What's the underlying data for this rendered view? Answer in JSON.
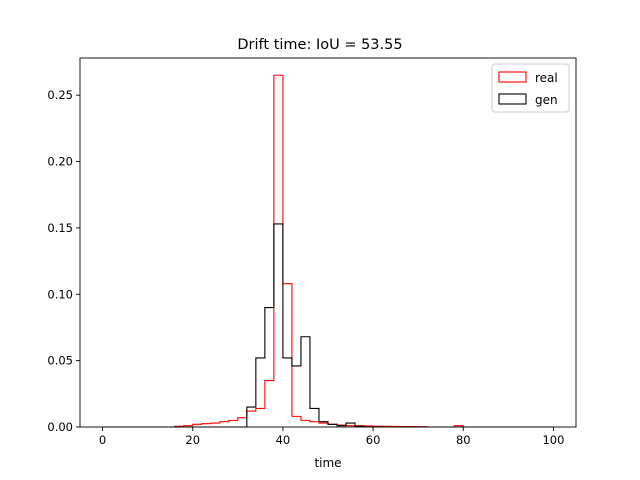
{
  "chart_data": {
    "type": "histogram",
    "title": "Drift time: IoU = 53.55",
    "xlabel": "time",
    "ylabel": "",
    "xlim": [
      -5,
      105
    ],
    "ylim": [
      0,
      0.278
    ],
    "xticks": [
      0,
      20,
      40,
      60,
      80,
      100
    ],
    "xtick_labels": [
      "0",
      "20",
      "40",
      "60",
      "80",
      "100"
    ],
    "yticks": [
      0.0,
      0.05,
      0.1,
      0.15,
      0.2,
      0.25
    ],
    "ytick_labels": [
      "0.00",
      "0.05",
      "0.10",
      "0.15",
      "0.20",
      "0.25"
    ],
    "grid": false,
    "legend_position": "top-right",
    "bin_edges": [
      0,
      2,
      4,
      6,
      8,
      10,
      12,
      14,
      16,
      18,
      20,
      22,
      24,
      26,
      28,
      30,
      32,
      34,
      36,
      38,
      40,
      42,
      44,
      46,
      48,
      50,
      52,
      54,
      56,
      58,
      60,
      62,
      64,
      66,
      68,
      70,
      72,
      74,
      76,
      78,
      80,
      82,
      84,
      86,
      88,
      90,
      92,
      94,
      96,
      98,
      100
    ],
    "series": [
      {
        "name": "real",
        "color": "#ff0000",
        "values": [
          0,
          0,
          0,
          0,
          0,
          0,
          0,
          0,
          0.0005,
          0.001,
          0.002,
          0.0025,
          0.003,
          0.004,
          0.005,
          0.007,
          0.012,
          0.014,
          0.035,
          0.265,
          0.108,
          0.008,
          0.005,
          0.004,
          0.003,
          0.002,
          0.0015,
          0.001,
          0.001,
          0.0008,
          0.0005,
          0.0005,
          0.0004,
          0.0003,
          0.0003,
          0.0002,
          0,
          0,
          0,
          0.001,
          0,
          0,
          0,
          0,
          0,
          0,
          0,
          0,
          0,
          0
        ]
      },
      {
        "name": "gen",
        "color": "#000000",
        "values": [
          0,
          0,
          0,
          0,
          0,
          0,
          0,
          0,
          0,
          0,
          0,
          0,
          0,
          0,
          0,
          0,
          0.015,
          0.052,
          0.09,
          0.153,
          0.052,
          0.046,
          0.068,
          0.014,
          0.004,
          0.002,
          0.001,
          0.003,
          0.0005,
          0,
          0,
          0,
          0,
          0,
          0,
          0,
          0,
          0,
          0,
          0,
          0,
          0,
          0,
          0,
          0,
          0,
          0,
          0,
          0,
          0
        ]
      }
    ]
  }
}
